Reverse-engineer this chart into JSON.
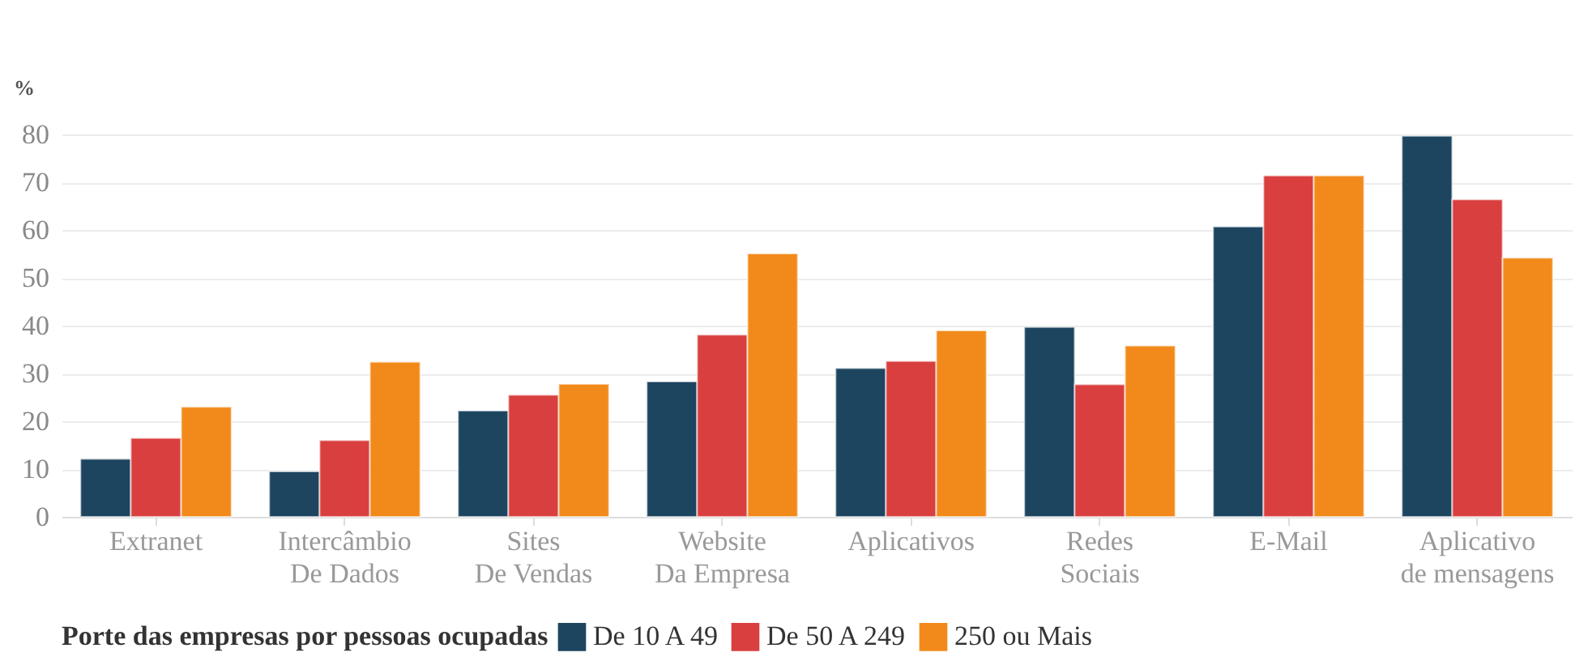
{
  "chart_data": {
    "type": "bar",
    "ylabel": "%",
    "legend_title": "Porte das empresas por pessoas ocupadas",
    "categories": [
      "Extranet",
      "Intercâmbio\nDe Dados",
      "Sites\nDe Vendas",
      "Website\nDa Empresa",
      "Aplicativos",
      "Redes\nSociais",
      "E-Mail",
      "Aplicativo\nde mensagens"
    ],
    "series": [
      {
        "name": "De 10 A 49",
        "color": "#1d4560",
        "values": [
          12.1,
          9.5,
          22.2,
          28.3,
          31.1,
          39.7,
          60.7,
          79.7
        ]
      },
      {
        "name": "De 50 A 249",
        "color": "#d93f3f",
        "values": [
          16.5,
          16.0,
          25.5,
          38.1,
          32.6,
          27.7,
          71.4,
          66.4
        ]
      },
      {
        "name": "250 ou Mais",
        "color": "#f28a1b",
        "values": [
          23.0,
          32.4,
          27.8,
          55.1,
          39.0,
          35.8,
          71.4,
          54.2
        ]
      }
    ],
    "ylim": [
      0,
      80
    ],
    "yticks": [
      0,
      10,
      20,
      30,
      40,
      50,
      60,
      70,
      80
    ],
    "grid": "y",
    "legend": "bottom"
  }
}
